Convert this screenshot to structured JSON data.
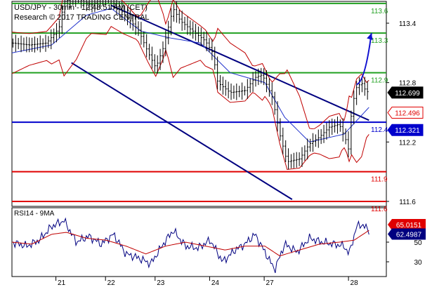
{
  "header": {
    "line1": "USD/JPY - 30min - 12:48:51 AM (CET)",
    "line2": "Research © 2017 TRADING CENTRAL"
  },
  "colors": {
    "green": "#21a021",
    "blue": "#0000cc",
    "red": "#e00000",
    "navy": "#000080",
    "band": "#c00000",
    "candle": "#000000",
    "ma_blue": "#2233cc",
    "arrow": "#1010d0",
    "rsi_line": "#000080",
    "rsi_ma": "#c00000"
  },
  "chart_data": [
    {
      "type": "candlestick",
      "y_axis": {
        "ylim": [
          111.55,
          113.62
        ],
        "ticks": [
          113.4,
          112.8,
          112.2,
          111.6
        ]
      },
      "x_axis": {
        "ticks": [
          "21",
          "22",
          "23",
          "24",
          "27",
          "28"
        ],
        "range": [
          0,
          7.55
        ]
      },
      "levels": [
        {
          "value": 113.6,
          "label": "113.6",
          "color": "green"
        },
        {
          "value": 113.3,
          "label": "113.3",
          "color": "green"
        },
        {
          "value": 112.9,
          "label": "112.9",
          "color": "green"
        },
        {
          "value": 112.4,
          "label": "112.4",
          "color": "blue"
        },
        {
          "value": 111.9,
          "label": "111.9",
          "color": "red"
        },
        {
          "value": 111.6,
          "label": "111.6",
          "color": "red"
        }
      ],
      "value_tags": [
        {
          "value": 112.699,
          "label": "112.699",
          "style": "black"
        },
        {
          "value": 112.496,
          "label": "112.496",
          "style": "red"
        },
        {
          "value": 112.321,
          "label": "112.321",
          "style": "blue"
        }
      ],
      "channel": [
        {
          "from": [
            2.0,
            113.58
          ],
          "to": [
            7.2,
            112.42
          ]
        },
        {
          "from": [
            1.2,
            113.0
          ],
          "to": [
            5.65,
            111.62
          ]
        }
      ],
      "arrow": {
        "from": [
          6.95,
          112.78
        ],
        "to": [
          7.25,
          113.3
        ]
      },
      "price_path": [
        [
          0.0,
          113.2
        ],
        [
          0.35,
          113.18
        ],
        [
          0.7,
          113.2
        ],
        [
          0.95,
          113.35
        ],
        [
          1.05,
          113.62
        ],
        [
          1.3,
          113.66
        ],
        [
          1.6,
          113.58
        ],
        [
          1.9,
          113.68
        ],
        [
          2.0,
          113.62
        ],
        [
          2.25,
          113.5
        ],
        [
          2.55,
          113.33
        ],
        [
          2.75,
          113.1
        ],
        [
          2.9,
          112.95
        ],
        [
          3.05,
          113.15
        ],
        [
          3.25,
          113.55
        ],
        [
          3.4,
          113.42
        ],
        [
          3.65,
          113.32
        ],
        [
          3.9,
          113.22
        ],
        [
          4.05,
          113.1
        ],
        [
          4.15,
          112.8
        ],
        [
          4.4,
          112.7
        ],
        [
          4.7,
          112.72
        ],
        [
          4.9,
          112.85
        ],
        [
          5.05,
          112.88
        ],
        [
          5.25,
          112.65
        ],
        [
          5.4,
          112.28
        ],
        [
          5.55,
          112.0
        ],
        [
          5.8,
          112.03
        ],
        [
          6.0,
          112.18
        ],
        [
          6.2,
          112.25
        ],
        [
          6.4,
          112.35
        ],
        [
          6.6,
          112.38
        ],
        [
          6.75,
          112.2
        ],
        [
          6.8,
          112.1
        ],
        [
          6.85,
          112.55
        ],
        [
          6.95,
          112.75
        ],
        [
          7.05,
          112.8
        ],
        [
          7.15,
          112.7
        ],
        [
          7.2,
          112.72
        ]
      ],
      "ma_path": [
        [
          0.0,
          113.1
        ],
        [
          0.8,
          113.18
        ],
        [
          1.5,
          113.48
        ],
        [
          2.0,
          113.55
        ],
        [
          2.6,
          113.32
        ],
        [
          3.2,
          113.25
        ],
        [
          3.8,
          113.2
        ],
        [
          4.4,
          112.9
        ],
        [
          5.1,
          112.8
        ],
        [
          5.5,
          112.45
        ],
        [
          6.0,
          112.2
        ],
        [
          6.7,
          112.28
        ],
        [
          7.2,
          112.55
        ]
      ]
    },
    {
      "type": "line",
      "title": "RSI14 - 9MA",
      "ylim": [
        15,
        85
      ],
      "y_ticks": [
        50,
        30
      ],
      "value_tags": [
        {
          "value": 65.0151,
          "label": "65.0151",
          "style": "red"
        },
        {
          "value": 62.4987,
          "label": "62.4987",
          "style": "navy"
        }
      ],
      "series": [
        {
          "key": "rsi",
          "values": [
            [
              0.0,
              50
            ],
            [
              0.3,
              46
            ],
            [
              0.55,
              52
            ],
            [
              0.8,
              66
            ],
            [
              1.05,
              72
            ],
            [
              1.3,
              50
            ],
            [
              1.55,
              56
            ],
            [
              1.8,
              48
            ],
            [
              2.05,
              58
            ],
            [
              2.3,
              38
            ],
            [
              2.55,
              34
            ],
            [
              2.8,
              28
            ],
            [
              3.05,
              48
            ],
            [
              3.25,
              62
            ],
            [
              3.5,
              46
            ],
            [
              3.75,
              44
            ],
            [
              4.0,
              52
            ],
            [
              4.25,
              30
            ],
            [
              4.5,
              42
            ],
            [
              4.7,
              48
            ],
            [
              4.9,
              58
            ],
            [
              5.1,
              40
            ],
            [
              5.3,
              22
            ],
            [
              5.5,
              48
            ],
            [
              5.75,
              40
            ],
            [
              6.0,
              54
            ],
            [
              6.25,
              50
            ],
            [
              6.5,
              48
            ],
            [
              6.7,
              46
            ],
            [
              6.8,
              38
            ],
            [
              6.95,
              66
            ],
            [
              7.05,
              68
            ],
            [
              7.2,
              62
            ]
          ]
        },
        {
          "key": "ma",
          "values": [
            [
              0.0,
              50
            ],
            [
              0.4,
              48
            ],
            [
              0.8,
              58
            ],
            [
              1.1,
              60
            ],
            [
              1.5,
              54
            ],
            [
              1.9,
              52
            ],
            [
              2.3,
              46
            ],
            [
              2.7,
              38
            ],
            [
              3.1,
              46
            ],
            [
              3.5,
              50
            ],
            [
              3.9,
              46
            ],
            [
              4.3,
              42
            ],
            [
              4.7,
              46
            ],
            [
              5.1,
              46
            ],
            [
              5.4,
              36
            ],
            [
              5.8,
              42
            ],
            [
              6.2,
              48
            ],
            [
              6.6,
              50
            ],
            [
              6.9,
              52
            ],
            [
              7.2,
              62
            ]
          ]
        }
      ]
    }
  ]
}
